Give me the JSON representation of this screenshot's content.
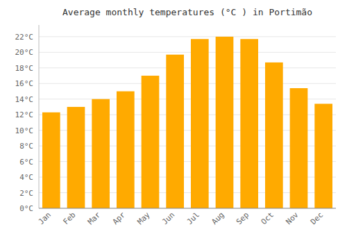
{
  "chart_data": {
    "type": "bar",
    "title": "Average monthly temperatures (°C ) in Portimão",
    "categories": [
      "Jan",
      "Feb",
      "Mar",
      "Apr",
      "May",
      "Jun",
      "Jul",
      "Aug",
      "Sep",
      "Oct",
      "Nov",
      "Dec"
    ],
    "values": [
      12.3,
      13.0,
      14.0,
      15.0,
      17.0,
      19.7,
      21.7,
      22.0,
      21.7,
      18.7,
      15.4,
      13.4
    ],
    "color": "#FFAA00",
    "ylim": [
      0,
      23.5
    ],
    "yticks": [
      {
        "value": 0,
        "label": "0°C"
      },
      {
        "value": 2,
        "label": "2°C"
      },
      {
        "value": 4,
        "label": "4°C"
      },
      {
        "value": 6,
        "label": "6°C"
      },
      {
        "value": 8,
        "label": "8°C"
      },
      {
        "value": 10,
        "label": "10°C"
      },
      {
        "value": 12,
        "label": "12°C"
      },
      {
        "value": 14,
        "label": "14°C"
      },
      {
        "value": 16,
        "label": "16°C"
      },
      {
        "value": 18,
        "label": "18°C"
      },
      {
        "value": 20,
        "label": "20°C"
      },
      {
        "value": 22,
        "label": "22°C"
      }
    ],
    "grid": true
  }
}
